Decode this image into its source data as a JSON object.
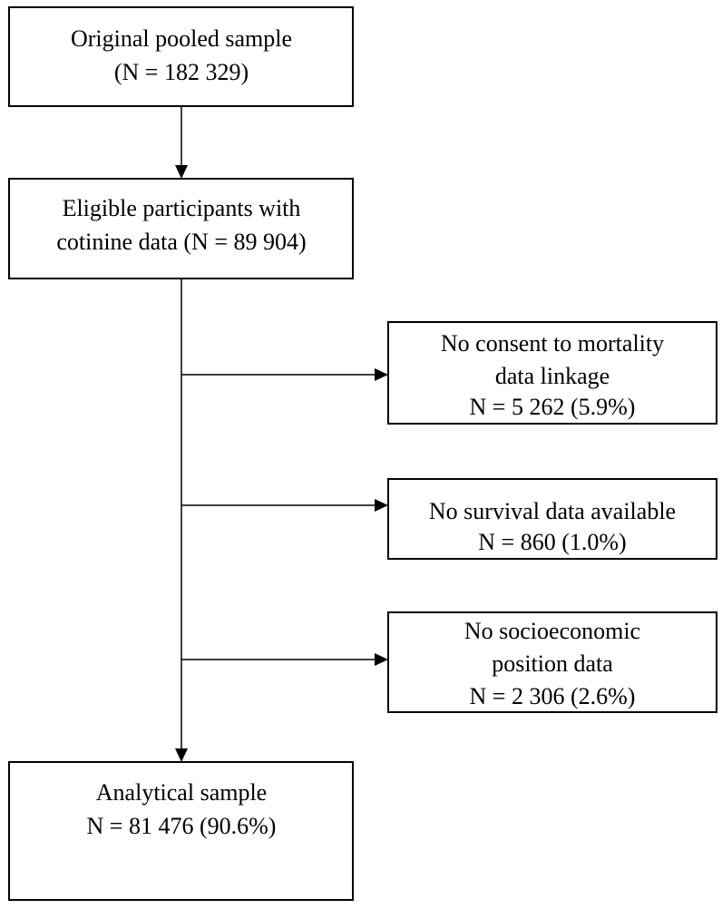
{
  "nodes": [
    {
      "lines": [
        "Original pooled sample",
        "(N = 182 329)"
      ]
    },
    {
      "lines": [
        "Eligible participants with",
        "cotinine data (N = 89 904)"
      ]
    },
    {
      "lines": [
        "No consent to mortality",
        "data linkage",
        "N = 5 262 (5.9%)"
      ]
    },
    {
      "lines": [
        "No survival data available",
        "N = 860 (1.0%)"
      ]
    },
    {
      "lines": [
        "No socioeconomic",
        "position data",
        "N = 2 306 (2.6%)"
      ]
    },
    {
      "lines": [
        "Analytical sample",
        "N = 81 476 (90.6%)"
      ]
    }
  ]
}
